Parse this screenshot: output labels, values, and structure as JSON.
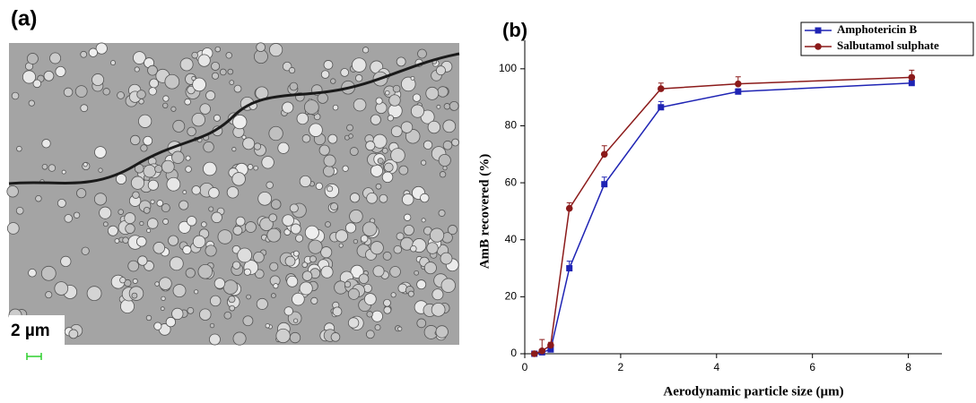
{
  "panel_a": {
    "label": "(a)",
    "scale_bar": "2 µm"
  },
  "chart_data": {
    "type": "line",
    "panel_label": "(b)",
    "x_label": "Aerodynamic particle size (µm)",
    "y_label": "AmB recovered (%)",
    "x": [
      0.2,
      0.36,
      0.54,
      0.93,
      1.66,
      2.84,
      4.45,
      8.07
    ],
    "series": [
      {
        "name": "Amphotericin B",
        "color": "#1f24b4",
        "marker": "square",
        "values": [
          0,
          0.5,
          1.5,
          30,
          59.5,
          86.5,
          92,
          95
        ],
        "errors": [
          0,
          0.5,
          0.5,
          2.5,
          2.5,
          2,
          1,
          1
        ]
      },
      {
        "name": "Salbutamol sulphate",
        "color": "#8b1a1a",
        "marker": "circle",
        "values": [
          0,
          1,
          3,
          51,
          70,
          93,
          94.7,
          97
        ],
        "errors": [
          0,
          4,
          1,
          2,
          3,
          2,
          2.5,
          2.5
        ]
      }
    ],
    "xlim": [
      0,
      8.7
    ],
    "xticks": [
      0,
      2,
      4,
      6,
      8
    ],
    "ylim": [
      0,
      110
    ],
    "yticks": [
      0,
      20,
      40,
      60,
      80,
      100
    ],
    "legend": "upper right"
  }
}
